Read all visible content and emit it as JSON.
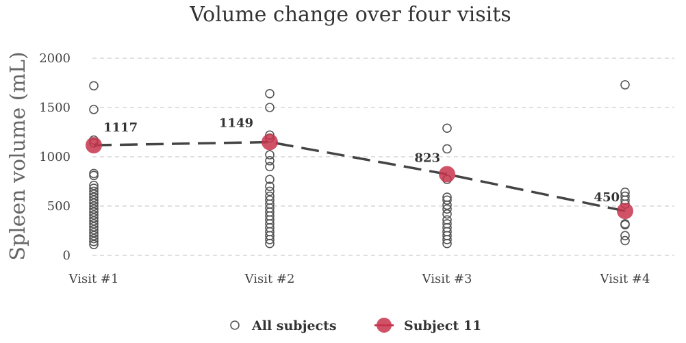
{
  "chart_data": {
    "type": "scatter",
    "title": "Volume change over four visits",
    "xlabel": "",
    "ylabel": "Spleen volume (mL)",
    "categories": [
      "Visit #1",
      "Visit #2",
      "Visit #3",
      "Visit #4"
    ],
    "ylim": [
      0,
      2000
    ],
    "yticks": [
      0,
      500,
      1000,
      1500,
      2000
    ],
    "grid": true,
    "legend_position": "bottom",
    "series": [
      {
        "name": "All subjects",
        "marker": "open-circle",
        "color": "#555555",
        "points": [
          {
            "x": "Visit #1",
            "y": 1720
          },
          {
            "x": "Visit #1",
            "y": 1480
          },
          {
            "x": "Visit #1",
            "y": 1170
          },
          {
            "x": "Visit #1",
            "y": 1140
          },
          {
            "x": "Visit #1",
            "y": 830
          },
          {
            "x": "Visit #1",
            "y": 810
          },
          {
            "x": "Visit #1",
            "y": 710
          },
          {
            "x": "Visit #1",
            "y": 680
          },
          {
            "x": "Visit #1",
            "y": 650
          },
          {
            "x": "Visit #1",
            "y": 620
          },
          {
            "x": "Visit #1",
            "y": 590
          },
          {
            "x": "Visit #1",
            "y": 560
          },
          {
            "x": "Visit #1",
            "y": 530
          },
          {
            "x": "Visit #1",
            "y": 500
          },
          {
            "x": "Visit #1",
            "y": 470
          },
          {
            "x": "Visit #1",
            "y": 440
          },
          {
            "x": "Visit #1",
            "y": 410
          },
          {
            "x": "Visit #1",
            "y": 380
          },
          {
            "x": "Visit #1",
            "y": 350
          },
          {
            "x": "Visit #1",
            "y": 320
          },
          {
            "x": "Visit #1",
            "y": 290
          },
          {
            "x": "Visit #1",
            "y": 260
          },
          {
            "x": "Visit #1",
            "y": 230
          },
          {
            "x": "Visit #1",
            "y": 200
          },
          {
            "x": "Visit #1",
            "y": 170
          },
          {
            "x": "Visit #1",
            "y": 140
          },
          {
            "x": "Visit #1",
            "y": 110
          },
          {
            "x": "Visit #2",
            "y": 1640
          },
          {
            "x": "Visit #2",
            "y": 1500
          },
          {
            "x": "Visit #2",
            "y": 1220
          },
          {
            "x": "Visit #2",
            "y": 1190
          },
          {
            "x": "Visit #2",
            "y": 1020
          },
          {
            "x": "Visit #2",
            "y": 960
          },
          {
            "x": "Visit #2",
            "y": 900
          },
          {
            "x": "Visit #2",
            "y": 770
          },
          {
            "x": "Visit #2",
            "y": 700
          },
          {
            "x": "Visit #2",
            "y": 650
          },
          {
            "x": "Visit #2",
            "y": 600
          },
          {
            "x": "Visit #2",
            "y": 560
          },
          {
            "x": "Visit #2",
            "y": 520
          },
          {
            "x": "Visit #2",
            "y": 480
          },
          {
            "x": "Visit #2",
            "y": 440
          },
          {
            "x": "Visit #2",
            "y": 400
          },
          {
            "x": "Visit #2",
            "y": 360
          },
          {
            "x": "Visit #2",
            "y": 320
          },
          {
            "x": "Visit #2",
            "y": 280
          },
          {
            "x": "Visit #2",
            "y": 240
          },
          {
            "x": "Visit #2",
            "y": 200
          },
          {
            "x": "Visit #2",
            "y": 160
          },
          {
            "x": "Visit #2",
            "y": 120
          },
          {
            "x": "Visit #3",
            "y": 1290
          },
          {
            "x": "Visit #3",
            "y": 1080
          },
          {
            "x": "Visit #3",
            "y": 770
          },
          {
            "x": "Visit #3",
            "y": 590
          },
          {
            "x": "Visit #3",
            "y": 560
          },
          {
            "x": "Visit #3",
            "y": 510
          },
          {
            "x": "Visit #3",
            "y": 470
          },
          {
            "x": "Visit #3",
            "y": 420
          },
          {
            "x": "Visit #3",
            "y": 360
          },
          {
            "x": "Visit #3",
            "y": 320
          },
          {
            "x": "Visit #3",
            "y": 280
          },
          {
            "x": "Visit #3",
            "y": 240
          },
          {
            "x": "Visit #3",
            "y": 200
          },
          {
            "x": "Visit #3",
            "y": 160
          },
          {
            "x": "Visit #3",
            "y": 120
          },
          {
            "x": "Visit #4",
            "y": 1730
          },
          {
            "x": "Visit #4",
            "y": 640
          },
          {
            "x": "Visit #4",
            "y": 600
          },
          {
            "x": "Visit #4",
            "y": 560
          },
          {
            "x": "Visit #4",
            "y": 520
          },
          {
            "x": "Visit #4",
            "y": 320
          },
          {
            "x": "Visit #4",
            "y": 310
          },
          {
            "x": "Visit #4",
            "y": 200
          },
          {
            "x": "Visit #4",
            "y": 150
          }
        ]
      },
      {
        "name": "Subject 11",
        "marker": "filled-circle",
        "line": "dashed",
        "color": "#c7344b",
        "line_color": "#444444",
        "points": [
          {
            "x": "Visit #1",
            "y": 1117,
            "label": "1117"
          },
          {
            "x": "Visit #2",
            "y": 1149,
            "label": "1149"
          },
          {
            "x": "Visit #3",
            "y": 823,
            "label": "823"
          },
          {
            "x": "Visit #4",
            "y": 450,
            "label": "450"
          }
        ]
      }
    ]
  }
}
